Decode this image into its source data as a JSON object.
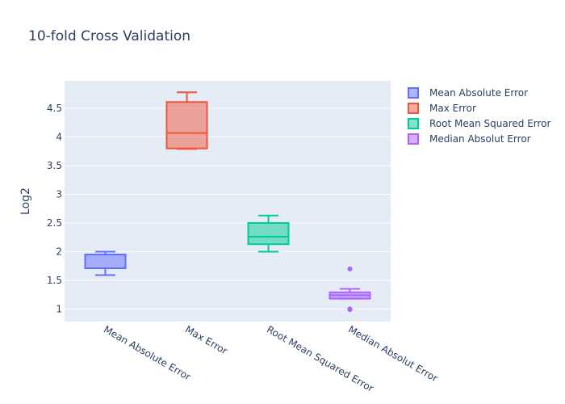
{
  "chart_data": {
    "type": "box",
    "title": "10-fold Cross Validation",
    "xlabel": "",
    "ylabel": "Log2",
    "ylim": [
      0.78,
      4.98
    ],
    "yticks": [
      "1",
      "1.5",
      "2",
      "2.5",
      "3",
      "3.5",
      "4",
      "4.5"
    ],
    "ytick_values": [
      1,
      1.5,
      2,
      2.5,
      3,
      3.5,
      4,
      4.5
    ],
    "grid": true,
    "legend_position": "top-right",
    "series": [
      {
        "name": "Mean Absolute Error",
        "category": "Mean Absolute Error",
        "color": "#636efa",
        "min": 1.59,
        "q1": 1.71,
        "median": 1.71,
        "q3": 1.95,
        "max": 2.0,
        "outliers": []
      },
      {
        "name": "Max Error",
        "category": "Max Error",
        "color": "#ef553b",
        "min": 3.79,
        "q1": 3.8,
        "median": 4.07,
        "q3": 4.61,
        "max": 4.78,
        "outliers": []
      },
      {
        "name": "Root Mean Squared Error",
        "category": "Root Mean Squared Error",
        "color": "#00cc96",
        "min": 2.0,
        "q1": 2.13,
        "median": 2.26,
        "q3": 2.5,
        "max": 2.63,
        "outliers": []
      },
      {
        "name": "Median Absolut Error",
        "category": "Median Absolut Error",
        "color": "#ab63fa",
        "min": 1.18,
        "q1": 1.18,
        "median": 1.24,
        "q3": 1.29,
        "max": 1.35,
        "outliers": [
          1.7,
          1.0,
          0.99
        ]
      }
    ]
  }
}
